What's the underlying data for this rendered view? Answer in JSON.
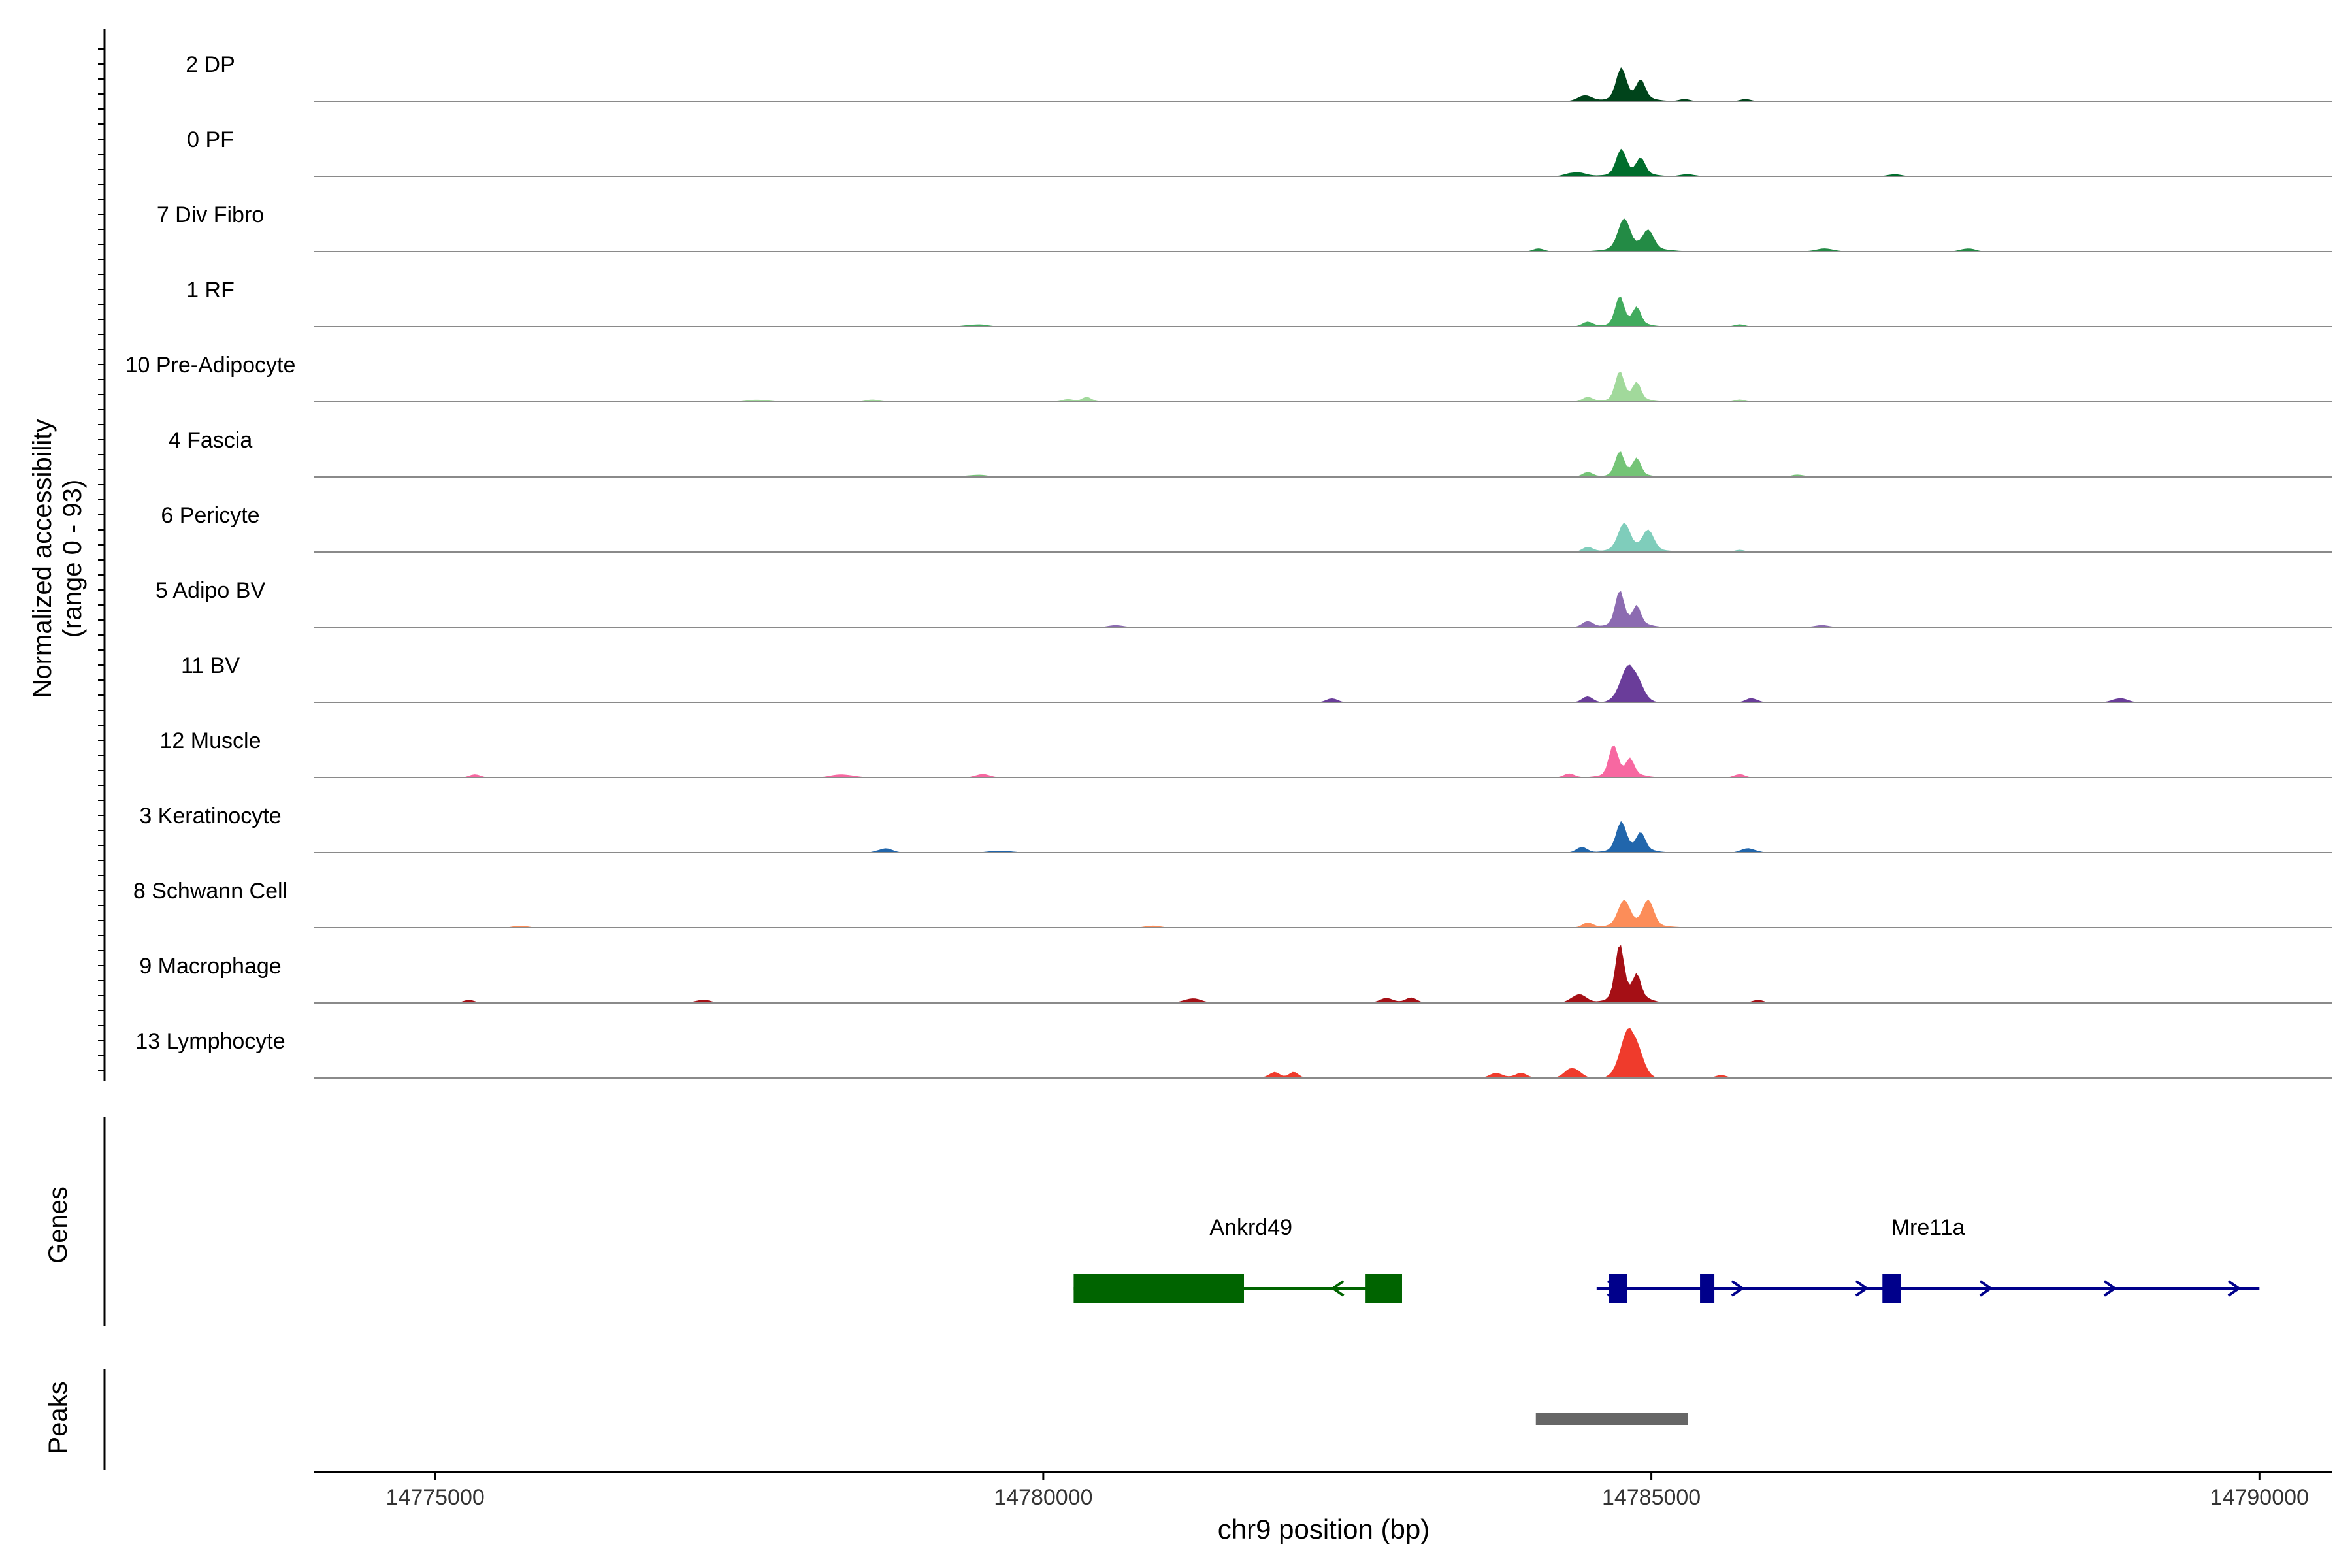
{
  "chart_data": {
    "type": "area",
    "title": "",
    "ylabel_line1": "Normalized accessibility",
    "ylabel_line2": "(range 0 - 93)",
    "xlabel": "chr9 position (bp)",
    "xlim": [
      14774000,
      14790600
    ],
    "x_ticks": [
      14775000,
      14780000,
      14785000,
      14790000
    ],
    "x_tick_labels": [
      "14775000",
      "14780000",
      "14785000",
      "14790000"
    ],
    "ylim": [
      0,
      93
    ],
    "gene_panel_label": "Genes",
    "peak_panel_label": "Peaks",
    "tracks": [
      {
        "name": "2 DP",
        "color": "#00441b",
        "peaks": [
          [
            14784650,
            14785050,
            27,
            15
          ],
          [
            14784350,
            14784550,
            5,
            5
          ],
          [
            14785200,
            14785350,
            2,
            3
          ],
          [
            14785700,
            14785850,
            2,
            3
          ]
        ]
      },
      {
        "name": "0 PF",
        "color": "#006d2c",
        "peaks": [
          [
            14784650,
            14785050,
            22,
            13
          ],
          [
            14784250,
            14784500,
            4,
            5
          ],
          [
            14785200,
            14785400,
            2,
            3
          ],
          [
            14786900,
            14787100,
            2,
            3
          ]
        ]
      },
      {
        "name": "7 Div Fibro",
        "color": "#238b45",
        "peaks": [
          [
            14784650,
            14785150,
            26,
            14
          ],
          [
            14784000,
            14784150,
            3,
            3
          ],
          [
            14786300,
            14786550,
            3,
            3
          ],
          [
            14787500,
            14787700,
            3,
            3
          ]
        ]
      },
      {
        "name": "1 RF",
        "color": "#41ab5d",
        "peaks": [
          [
            14784650,
            14785000,
            25,
            15
          ],
          [
            14784400,
            14784550,
            4,
            5
          ],
          [
            14785650,
            14785800,
            2,
            3
          ],
          [
            14779300,
            14779600,
            2,
            3
          ]
        ]
      },
      {
        "name": "10 Pre-Adipocyte",
        "color": "#a1d99b",
        "peaks": [
          [
            14784650,
            14785000,
            25,
            15
          ],
          [
            14784400,
            14784550,
            4,
            5
          ],
          [
            14785650,
            14785800,
            2,
            3
          ],
          [
            14777500,
            14777800,
            2,
            4
          ],
          [
            14778500,
            14778700,
            2,
            4
          ],
          [
            14780100,
            14780500,
            2,
            4
          ]
        ]
      },
      {
        "name": "4 Fascia",
        "color": "#74c476",
        "peaks": [
          [
            14784650,
            14785000,
            21,
            15
          ],
          [
            14784400,
            14784550,
            4,
            5
          ],
          [
            14779300,
            14779600,
            2,
            3
          ],
          [
            14786100,
            14786300,
            2,
            3
          ]
        ]
      },
      {
        "name": "6 Pericyte",
        "color": "#7fcdbb",
        "peaks": [
          [
            14784650,
            14785150,
            23,
            15
          ],
          [
            14784400,
            14784550,
            4,
            5
          ],
          [
            14785650,
            14785800,
            2,
            3
          ]
        ]
      },
      {
        "name": "5 Adipo BV",
        "color": "#8c6bb1",
        "peaks": [
          [
            14784650,
            14785000,
            30,
            16
          ],
          [
            14784400,
            14784550,
            5,
            5
          ],
          [
            14786300,
            14786500,
            2,
            3
          ],
          [
            14780500,
            14780700,
            2,
            3
          ]
        ]
      },
      {
        "name": "11 BV",
        "color": "#6a3d9a",
        "peaks": [
          [
            14784700,
            14784950,
            36,
            40
          ],
          [
            14784400,
            14784550,
            5,
            5
          ],
          [
            14782300,
            14782450,
            4,
            4
          ],
          [
            14785750,
            14785900,
            4,
            4
          ],
          [
            14788750,
            14788950,
            4,
            3
          ]
        ]
      },
      {
        "name": "12 Muscle",
        "color": "#f768a1",
        "peaks": [
          [
            14784600,
            14784950,
            28,
            14
          ],
          [
            14784250,
            14784400,
            4,
            5
          ],
          [
            14775250,
            14775400,
            3,
            4
          ],
          [
            14778200,
            14778500,
            3,
            4
          ],
          [
            14779400,
            14779600,
            3,
            4
          ],
          [
            14785650,
            14785800,
            3,
            4
          ]
        ]
      },
      {
        "name": "3 Keratinocyte",
        "color": "#2166ac",
        "peaks": [
          [
            14784650,
            14785050,
            25,
            14
          ],
          [
            14784350,
            14784500,
            5,
            5
          ],
          [
            14778600,
            14778800,
            4,
            4
          ],
          [
            14785700,
            14785900,
            4,
            4
          ],
          [
            14779500,
            14779800,
            2,
            4
          ]
        ]
      },
      {
        "name": "8 Schwann Cell",
        "color": "#fc8d59",
        "peaks": [
          [
            14784650,
            14785150,
            22,
            20
          ],
          [
            14784400,
            14784550,
            4,
            5
          ],
          [
            14775600,
            14775800,
            2,
            3
          ],
          [
            14780800,
            14781000,
            2,
            3
          ]
        ]
      },
      {
        "name": "9 Macrophage",
        "color": "#a50f15",
        "peaks": [
          [
            14784650,
            14785000,
            48,
            20
          ],
          [
            14784300,
            14784500,
            8,
            6
          ],
          [
            14782700,
            14783200,
            4,
            4
          ],
          [
            14785800,
            14785950,
            3,
            4
          ],
          [
            14775200,
            14775350,
            3,
            4
          ],
          [
            14777100,
            14777300,
            3,
            4
          ],
          [
            14781100,
            14781350,
            4,
            4
          ]
        ]
      },
      {
        "name": "13 Lymphocyte",
        "color": "#ef3b2c",
        "peaks": [
          [
            14784700,
            14784950,
            48,
            15
          ],
          [
            14784250,
            14784450,
            10,
            8
          ],
          [
            14783600,
            14784100,
            4,
            4
          ],
          [
            14781800,
            14782200,
            5,
            5
          ],
          [
            14785500,
            14785650,
            3,
            4
          ]
        ]
      }
    ],
    "genes": [
      {
        "name": "Ankrd49",
        "strand": "-",
        "start": 14780250,
        "end": 14782950,
        "color": "#006400",
        "exons": [
          [
            14780250,
            14781650
          ],
          [
            14782650,
            14782950
          ]
        ]
      },
      {
        "name": "Mre11a",
        "strand": "+",
        "start": 14784550,
        "end": 14790000,
        "color": "#00008b",
        "exons": [
          [
            14784650,
            14784800
          ],
          [
            14785400,
            14785500
          ],
          [
            14786900,
            14787050
          ]
        ]
      }
    ],
    "peaks_region": [
      [
        14784050,
        14785300
      ]
    ],
    "peaks_color": "#666666",
    "legend": "none",
    "grid": false
  }
}
